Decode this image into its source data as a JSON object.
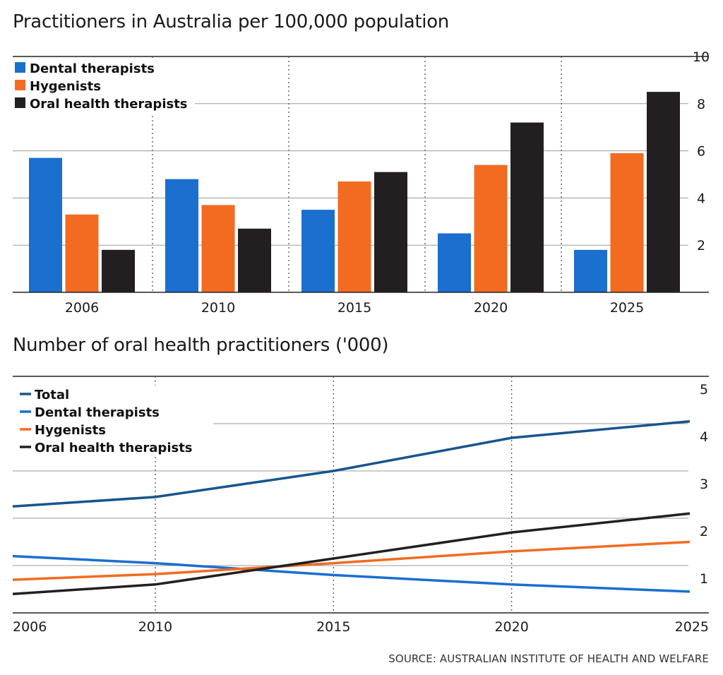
{
  "chart_data": [
    {
      "type": "bar",
      "title": "Practitioners in Australia per 100,000 population",
      "categories": [
        "2006",
        "2010",
        "2015",
        "2020",
        "2025"
      ],
      "series": [
        {
          "name": "Dental therapists",
          "color": "#1a6fcf",
          "values": [
            5.7,
            4.8,
            3.5,
            2.5,
            1.8
          ]
        },
        {
          "name": "Hygenists",
          "color": "#f26b21",
          "values": [
            3.3,
            3.7,
            4.7,
            5.4,
            5.9
          ]
        },
        {
          "name": "Oral health therapists",
          "color": "#231f20",
          "values": [
            1.8,
            2.7,
            5.1,
            7.2,
            8.5
          ]
        }
      ],
      "ylim": [
        0,
        10
      ],
      "yticks": [
        2,
        4,
        6,
        8,
        10
      ],
      "grid": true,
      "legend": "top-left"
    },
    {
      "type": "line",
      "title": "Number of oral health practitioners ('000)",
      "x": [
        2006,
        2010,
        2015,
        2020,
        2025
      ],
      "xticks": [
        "2006",
        "2010",
        "2015",
        "2020",
        "2025"
      ],
      "series": [
        {
          "name": "Total",
          "color": "#17558f",
          "values": [
            2.25,
            2.45,
            3.0,
            3.7,
            4.05
          ]
        },
        {
          "name": "Dental therapists",
          "color": "#1a6fcf",
          "values": [
            1.2,
            1.05,
            0.8,
            0.6,
            0.45
          ]
        },
        {
          "name": "Hygenists",
          "color": "#f26b21",
          "values": [
            0.7,
            0.82,
            1.05,
            1.3,
            1.5
          ]
        },
        {
          "name": "Oral health therapists",
          "color": "#231f20",
          "values": [
            0.4,
            0.6,
            1.15,
            1.7,
            2.1
          ]
        }
      ],
      "ylim": [
        0,
        5
      ],
      "yticks": [
        1,
        2,
        3,
        4,
        5
      ],
      "grid": true,
      "legend": "top-left"
    }
  ],
  "source": "SOURCE: AUSTRALIAN INSTITUTE OF HEALTH AND WELFARE"
}
